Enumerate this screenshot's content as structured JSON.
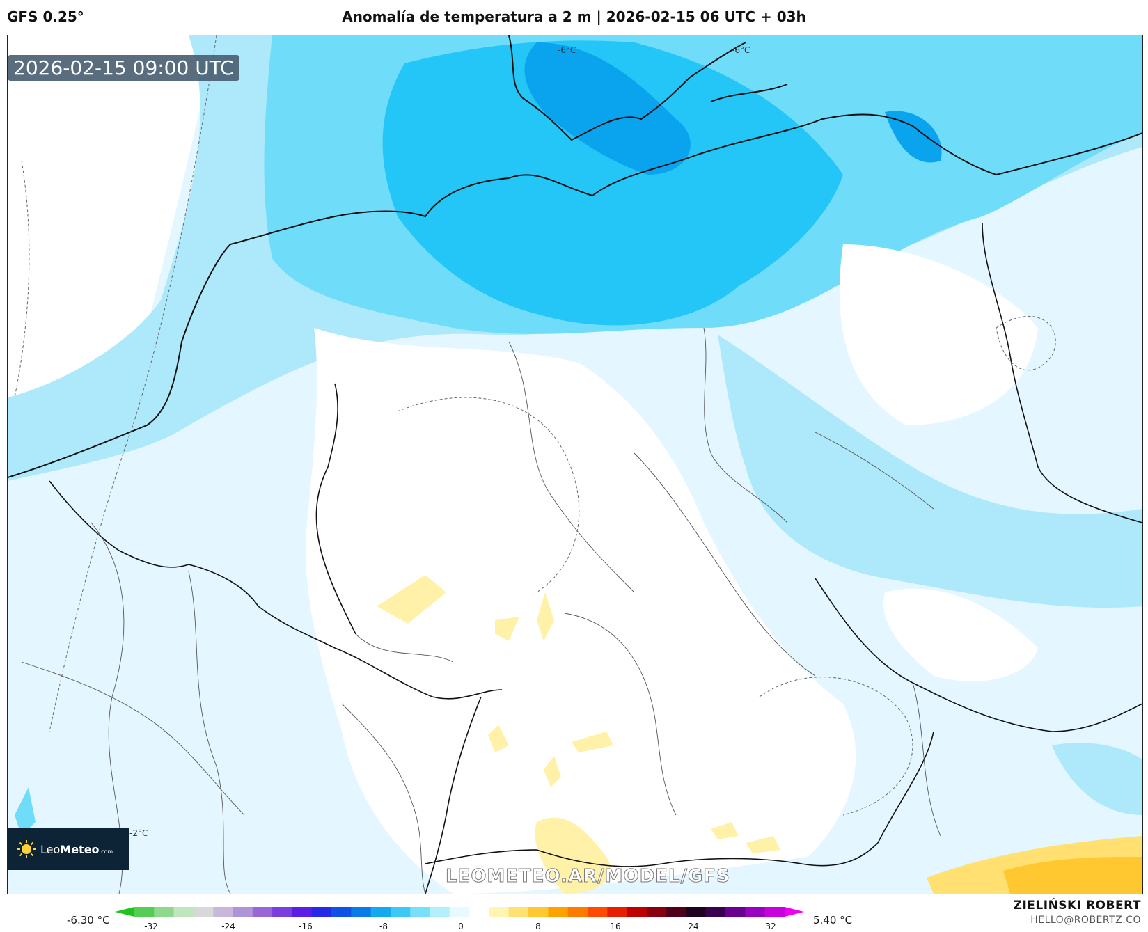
{
  "header": {
    "model": "GFS 0.25°",
    "title": "Anomalía de temperatura a 2 m | 2026-02-15 06 UTC + 03h"
  },
  "map": {
    "valid_time": "2026-02-15 09:00 UTC",
    "watermark": "LEOMETEO.AR/MODEL/GFS",
    "contour_labels": [
      "-6°C",
      "-6°C",
      "-2°C"
    ]
  },
  "logo": {
    "brand_light": "Leo",
    "brand_bold": "Meteo",
    "brand_suffix": ".com"
  },
  "colorbar": {
    "min_label": "-6.30 °C",
    "max_label": "5.40 °C",
    "ticks": [
      "-32",
      "-24",
      "-16",
      "-8",
      "0",
      "8",
      "16",
      "24",
      "32"
    ],
    "colors": [
      "#1fc21f",
      "#55cc55",
      "#8fd98f",
      "#bfe6bf",
      "#d8d8d8",
      "#c8b8dc",
      "#b094d8",
      "#9966d8",
      "#7a3ee0",
      "#5a1ee8",
      "#2828e8",
      "#1050e8",
      "#0a7ae8",
      "#14a8ee",
      "#3cc8f4",
      "#78e0fa",
      "#b4f0fc",
      "#e6faff",
      "#ffffff",
      "#fff4b0",
      "#ffe070",
      "#ffc830",
      "#ffa200",
      "#ff7a00",
      "#ff4a00",
      "#e81e00",
      "#c00000",
      "#8a0010",
      "#50001a",
      "#200020",
      "#3c0050",
      "#6a0090",
      "#9a00c0",
      "#c800e0",
      "#f000f0"
    ]
  },
  "credit": {
    "name": "ZIELIŃSKI ROBERT",
    "email": "HELLO@ROBERTZ.CO"
  }
}
